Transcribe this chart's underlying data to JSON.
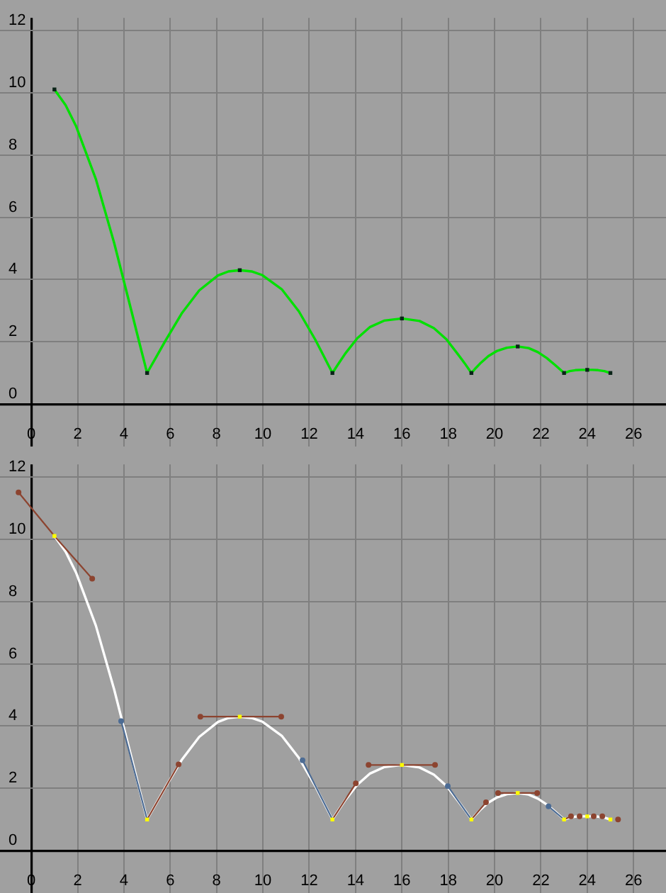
{
  "chart_data": [
    {
      "type": "line",
      "xlim": [
        -1.35,
        27.4
      ],
      "ylim": [
        -0.45,
        12.4
      ],
      "xticks": [
        0,
        2,
        4,
        6,
        8,
        10,
        12,
        14,
        16,
        18,
        20,
        22,
        24,
        26
      ],
      "yticks": [
        0,
        2,
        4,
        6,
        8,
        10,
        12
      ],
      "grid": true,
      "series": [
        {
          "color": "#00e000",
          "marker": "none",
          "x": [
            1,
            1.48,
            1.93,
            2.79,
            3.58,
            4.31,
            4.66,
            5,
            5.4,
            5.78,
            6.51,
            7.25,
            8.06,
            8.51,
            9,
            9.51,
            9.98,
            10.81,
            11.55,
            12.26,
            12.62,
            13,
            13.29,
            13.56,
            14.08,
            14.61,
            15.23,
            16,
            16.76,
            17.38,
            17.92,
            18.43,
            18.71,
            19,
            19.19,
            19.37,
            19.73,
            20.11,
            20.53,
            21,
            21.47,
            21.87,
            22.25,
            22.62,
            23,
            23.24,
            23.49,
            23.75,
            24,
            24.23,
            24.47,
            24.74,
            25
          ],
          "values": [
            10.1,
            9.6,
            8.93,
            7.22,
            5.17,
            3.03,
            1.99,
            1,
            1.52,
            2.02,
            2.93,
            3.65,
            4.13,
            4.26,
            4.3,
            4.26,
            4.14,
            3.69,
            2.98,
            2.07,
            1.55,
            1,
            1.33,
            1.63,
            2.12,
            2.47,
            2.68,
            2.75,
            2.67,
            2.44,
            2.08,
            1.59,
            1.31,
            1,
            1.16,
            1.3,
            1.54,
            1.71,
            1.81,
            1.85,
            1.8,
            1.67,
            1.48,
            1.25,
            1,
            1.06,
            1.09,
            1.1,
            1.1,
            1.1,
            1.09,
            1.06,
            1
          ]
        },
        {
          "type": "scatter",
          "color": "#0a2418",
          "marker": "square",
          "x": [
            1,
            5,
            9,
            13,
            16,
            19,
            21,
            23,
            24,
            25
          ],
          "values": [
            10.1,
            1,
            4.3,
            1,
            2.75,
            1,
            1.85,
            1,
            1.1,
            1
          ]
        }
      ]
    },
    {
      "type": "line",
      "xlim": [
        -1.35,
        27.4
      ],
      "ylim": [
        -0.45,
        12.4
      ],
      "xticks": [
        0,
        2,
        4,
        6,
        8,
        10,
        12,
        14,
        16,
        18,
        20,
        22,
        24,
        26
      ],
      "yticks": [
        0,
        2,
        4,
        6,
        8,
        10,
        12
      ],
      "grid": true,
      "series": [
        {
          "color": "#ffffff",
          "marker": "none",
          "x": [
            1,
            1.48,
            1.93,
            2.79,
            3.58,
            4.31,
            4.66,
            5,
            5.4,
            5.78,
            6.51,
            7.25,
            8.06,
            8.51,
            9,
            9.51,
            9.98,
            10.81,
            11.55,
            12.26,
            12.62,
            13,
            13.29,
            13.56,
            14.08,
            14.61,
            15.23,
            16,
            16.76,
            17.38,
            17.92,
            18.43,
            18.71,
            19,
            19.19,
            19.37,
            19.73,
            20.11,
            20.53,
            21,
            21.47,
            21.87,
            22.25,
            22.62,
            23,
            23.24,
            23.49,
            23.75,
            24,
            24.23,
            24.47,
            24.74,
            25
          ],
          "values": [
            10.1,
            9.6,
            8.93,
            7.22,
            5.17,
            3.03,
            1.99,
            1,
            1.52,
            2.02,
            2.93,
            3.65,
            4.13,
            4.26,
            4.3,
            4.26,
            4.14,
            3.69,
            2.98,
            2.07,
            1.55,
            1,
            1.33,
            1.63,
            2.12,
            2.47,
            2.68,
            2.75,
            2.67,
            2.44,
            2.08,
            1.59,
            1.31,
            1,
            1.16,
            1.3,
            1.54,
            1.71,
            1.81,
            1.85,
            1.8,
            1.67,
            1.48,
            1.25,
            1,
            1.06,
            1.09,
            1.1,
            1.1,
            1.1,
            1.09,
            1.06,
            1
          ]
        },
        {
          "type": "scatter",
          "color": "#8c4430",
          "marker": "circle",
          "x": [
            -0.55,
            2.63,
            6.36,
            7.3,
            10.79,
            14.01,
            14.56,
            17.43,
            19.63,
            20.15,
            21.84,
            23.3,
            23.67,
            24.28,
            24.65,
            25.33
          ],
          "values": [
            11.5,
            8.73,
            2.77,
            4.3,
            4.3,
            2.16,
            2.75,
            2.75,
            1.55,
            1.85,
            1.85,
            1.1,
            1.1,
            1.1,
            1.1,
            1
          ]
        },
        {
          "type": "scatter",
          "color": "#4d6c94",
          "marker": "circle",
          "x": [
            3.88,
            11.71,
            17.98,
            22.33
          ],
          "values": [
            4.16,
            2.9,
            2.07,
            1.42
          ]
        },
        {
          "color": "#8c4430",
          "marker": "none",
          "x": [
            -0.55,
            1,
            2.63
          ],
          "values": [
            11.5,
            10.1,
            8.73
          ]
        },
        {
          "color": "#8c4430",
          "marker": "none",
          "x": [
            5,
            6.36
          ],
          "values": [
            1,
            2.77
          ]
        },
        {
          "color": "#8c4430",
          "marker": "none",
          "x": [
            7.3,
            9,
            10.79
          ],
          "values": [
            4.3,
            4.3,
            4.3
          ]
        },
        {
          "color": "#8c4430",
          "marker": "none",
          "x": [
            13,
            14.01
          ],
          "values": [
            1,
            2.16
          ]
        },
        {
          "color": "#8c4430",
          "marker": "none",
          "x": [
            14.56,
            16,
            17.43
          ],
          "values": [
            2.75,
            2.75,
            2.75
          ]
        },
        {
          "color": "#8c4430",
          "marker": "none",
          "x": [
            19,
            19.63
          ],
          "values": [
            1,
            1.55
          ]
        },
        {
          "color": "#8c4430",
          "marker": "none",
          "x": [
            20.15,
            21,
            21.84
          ],
          "values": [
            1.85,
            1.85,
            1.85
          ]
        },
        {
          "color": "#8c4430",
          "marker": "none",
          "x": [
            23,
            23.3
          ],
          "values": [
            1,
            1.1
          ]
        },
        {
          "color": "#4d6c94",
          "marker": "none",
          "x": [
            3.88,
            5
          ],
          "values": [
            4.16,
            1
          ]
        },
        {
          "color": "#4d6c94",
          "marker": "none",
          "x": [
            11.71,
            13
          ],
          "values": [
            2.9,
            1
          ]
        },
        {
          "color": "#4d6c94",
          "marker": "none",
          "x": [
            17.98,
            19
          ],
          "values": [
            2.07,
            1
          ]
        },
        {
          "color": "#4d6c94",
          "marker": "none",
          "x": [
            22.33,
            23
          ],
          "values": [
            1.42,
            1
          ]
        },
        {
          "type": "scatter",
          "color": "#ffff00",
          "marker": "square",
          "x": [
            1,
            5,
            9,
            13,
            16,
            19,
            21,
            23,
            24,
            25
          ],
          "values": [
            10.1,
            1,
            4.3,
            1,
            2.75,
            1,
            1.85,
            1,
            1.1,
            1
          ]
        }
      ]
    }
  ]
}
